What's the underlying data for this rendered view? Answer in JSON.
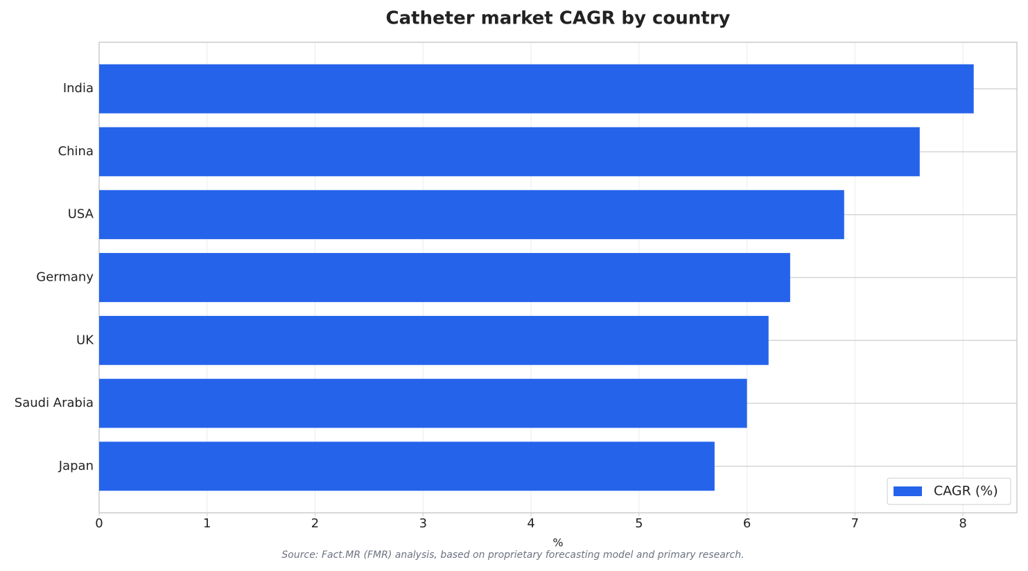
{
  "chart_data": {
    "type": "barh",
    "title": "Catheter market CAGR by country",
    "categories": [
      "India",
      "China",
      "USA",
      "Germany",
      "UK",
      "Saudi Arabia",
      "Japan"
    ],
    "series": [
      {
        "name": "CAGR (%)",
        "color": "#2563eb",
        "values": [
          8.1,
          7.6,
          6.9,
          6.4,
          6.2,
          6.0,
          5.7
        ]
      }
    ],
    "xlabel": "%",
    "xlim": [
      0,
      8.5
    ],
    "xticks": [
      0,
      1,
      2,
      3,
      4,
      5,
      6,
      7,
      8
    ],
    "grid": true,
    "legend": "lower right",
    "source": "Source: Fact.MR (FMR) analysis, based on proprietary forecasting model and primary research."
  }
}
